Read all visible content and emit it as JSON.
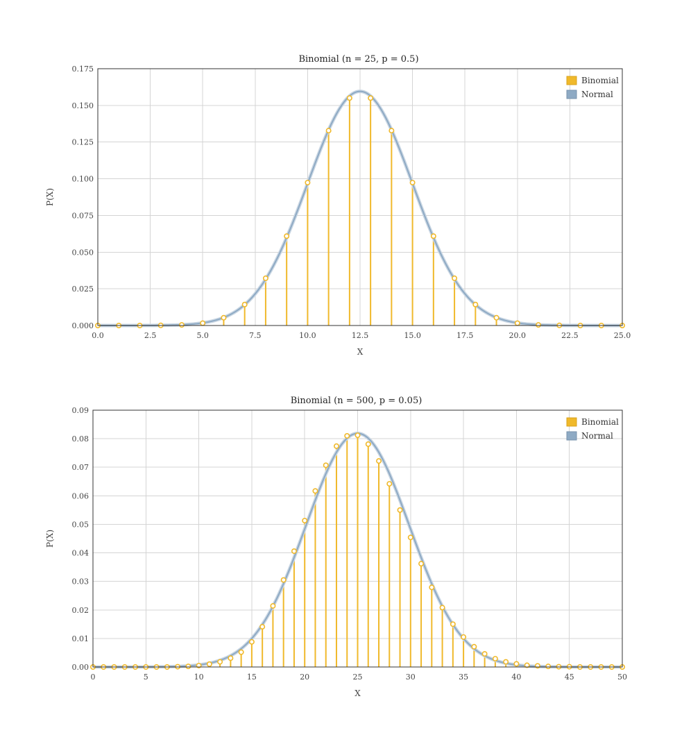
{
  "chart_data": [
    {
      "type": "line",
      "title": "Binomial (n = 25, p = 0.5)",
      "xlabel": "X",
      "ylabel": "P(X)",
      "xlim": [
        0,
        25
      ],
      "ylim": [
        0,
        0.175
      ],
      "x_ticks": [
        "0.0",
        "2.5",
        "5.0",
        "7.5",
        "10.0",
        "12.5",
        "15.0",
        "17.5",
        "20.0",
        "22.5",
        "25.0"
      ],
      "y_ticks": [
        "0.000",
        "0.025",
        "0.050",
        "0.075",
        "0.100",
        "0.125",
        "0.150",
        "0.175"
      ],
      "grid": true,
      "legend_position": "top-right",
      "series": [
        {
          "name": "Binomial",
          "color": "#f0b92b",
          "style": "stem",
          "x": [
            0,
            1,
            2,
            3,
            4,
            5,
            6,
            7,
            8,
            9,
            10,
            11,
            12,
            13,
            14,
            15,
            16,
            17,
            18,
            19,
            20,
            21,
            22,
            23,
            24,
            25
          ],
          "values": [
            0.0,
            0.0,
            0.0,
            0.0001,
            0.0004,
            0.0016,
            0.0053,
            0.0143,
            0.0322,
            0.0609,
            0.0974,
            0.1328,
            0.155,
            0.155,
            0.1328,
            0.0974,
            0.0609,
            0.0322,
            0.0143,
            0.0053,
            0.0016,
            0.0004,
            0.0001,
            0.0,
            0.0,
            0.0
          ]
        },
        {
          "name": "Normal",
          "color": "#8eaac4",
          "style": "curve",
          "mean": 12.5,
          "sd": 2.5
        }
      ]
    },
    {
      "type": "line",
      "title": "Binomial (n = 500, p = 0.05)",
      "xlabel": "X",
      "ylabel": "P(X)",
      "xlim": [
        0,
        50
      ],
      "ylim": [
        0,
        0.09
      ],
      "x_ticks": [
        "0",
        "5",
        "10",
        "15",
        "20",
        "25",
        "30",
        "35",
        "40",
        "45",
        "50"
      ],
      "y_ticks": [
        "0.00",
        "0.01",
        "0.02",
        "0.03",
        "0.04",
        "0.05",
        "0.06",
        "0.07",
        "0.08",
        "0.09"
      ],
      "grid": true,
      "legend_position": "top-right",
      "series": [
        {
          "name": "Binomial",
          "color": "#f0b92b",
          "style": "stem",
          "x": [
            0,
            1,
            2,
            3,
            4,
            5,
            6,
            7,
            8,
            9,
            10,
            11,
            12,
            13,
            14,
            15,
            16,
            17,
            18,
            19,
            20,
            21,
            22,
            23,
            24,
            25,
            26,
            27,
            28,
            29,
            30,
            31,
            32,
            33,
            34,
            35,
            36,
            37,
            38,
            39,
            40,
            41,
            42,
            43,
            44,
            45,
            46,
            47,
            48,
            49,
            50
          ],
          "values": [
            0.0,
            0.0,
            0.0,
            0.0,
            0.0,
            0.0,
            0.0,
            0.0,
            0.0001,
            0.0002,
            0.0005,
            0.001,
            0.0018,
            0.0031,
            0.0052,
            0.0088,
            0.0141,
            0.0214,
            0.0305,
            0.0406,
            0.0513,
            0.0617,
            0.0707,
            0.0774,
            0.081,
            0.0812,
            0.0781,
            0.0722,
            0.0642,
            0.055,
            0.0454,
            0.0362,
            0.0279,
            0.0208,
            0.015,
            0.0105,
            0.0071,
            0.0046,
            0.0029,
            0.0018,
            0.0011,
            0.0006,
            0.0004,
            0.0002,
            0.0001,
            0.0001,
            0.0,
            0.0,
            0.0,
            0.0,
            0.0
          ]
        },
        {
          "name": "Normal",
          "color": "#8eaac4",
          "style": "curve",
          "mean": 25,
          "sd": 4.873
        }
      ]
    }
  ]
}
